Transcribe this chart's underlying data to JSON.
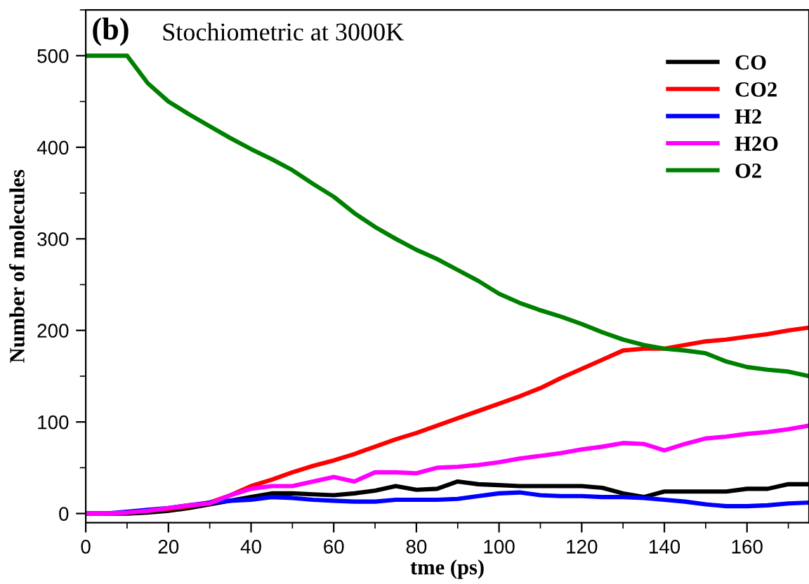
{
  "chart_data": {
    "type": "line",
    "annotations": [
      "(b)",
      "Stochiometric at 3000K"
    ],
    "xlabel": "tme (ps)",
    "ylabel": "Number of molecules",
    "x": [
      0,
      5,
      10,
      15,
      20,
      25,
      30,
      35,
      40,
      45,
      50,
      55,
      60,
      65,
      70,
      75,
      80,
      85,
      90,
      95,
      100,
      105,
      110,
      115,
      120,
      125,
      130,
      135,
      140,
      145,
      150,
      155,
      160,
      165,
      170,
      175
    ],
    "series": [
      {
        "name": "CO",
        "color": "#000000",
        "values": [
          0,
          0,
          0,
          1,
          3,
          6,
          10,
          14,
          18,
          22,
          22,
          21,
          20,
          22,
          25,
          30,
          26,
          27,
          35,
          32,
          31,
          30,
          30,
          30,
          30,
          28,
          22,
          18,
          24,
          24,
          24,
          24,
          27,
          27,
          32,
          32
        ]
      },
      {
        "name": "CO2",
        "color": "#ff0000",
        "values": [
          null,
          null,
          1,
          3,
          5,
          8,
          12,
          20,
          30,
          37,
          45,
          52,
          58,
          65,
          73,
          81,
          88,
          96,
          104,
          112,
          120,
          128,
          137,
          148,
          158,
          168,
          178,
          180,
          180,
          184,
          188,
          190,
          193,
          196,
          200,
          203
        ]
      },
      {
        "name": "H2",
        "color": "#0000ff",
        "values": [
          0,
          0,
          2,
          4,
          6,
          9,
          12,
          14,
          15,
          18,
          17,
          15,
          14,
          13,
          13,
          15,
          15,
          15,
          16,
          19,
          22,
          23,
          20,
          19,
          19,
          18,
          18,
          17,
          15,
          13,
          10,
          8,
          8,
          9,
          11,
          12
        ]
      },
      {
        "name": "H2O",
        "color": "#ff00ff",
        "values": [
          0,
          0,
          1,
          3,
          6,
          9,
          11,
          20,
          27,
          30,
          30,
          35,
          40,
          35,
          45,
          45,
          44,
          50,
          51,
          53,
          56,
          60,
          63,
          66,
          70,
          73,
          77,
          76,
          69,
          76,
          82,
          84,
          87,
          89,
          92,
          96
        ]
      },
      {
        "name": "O2",
        "color": "#008000",
        "values": [
          500,
          500,
          500,
          470,
          450,
          436,
          423,
          410,
          398,
          387,
          375,
          360,
          346,
          328,
          313,
          300,
          288,
          278,
          266,
          254,
          240,
          230,
          222,
          215,
          207,
          198,
          190,
          184,
          180,
          178,
          175,
          166,
          160,
          157,
          155,
          150
        ]
      }
    ],
    "xlim": [
      0,
      175
    ],
    "ylim": [
      -10,
      550
    ],
    "xticks": [
      0,
      20,
      40,
      60,
      80,
      100,
      120,
      140,
      160
    ],
    "yticks": [
      0,
      100,
      200,
      300,
      400,
      500
    ],
    "grid": false,
    "legend": "top right",
    "marker": "none",
    "line_style": "solid"
  }
}
